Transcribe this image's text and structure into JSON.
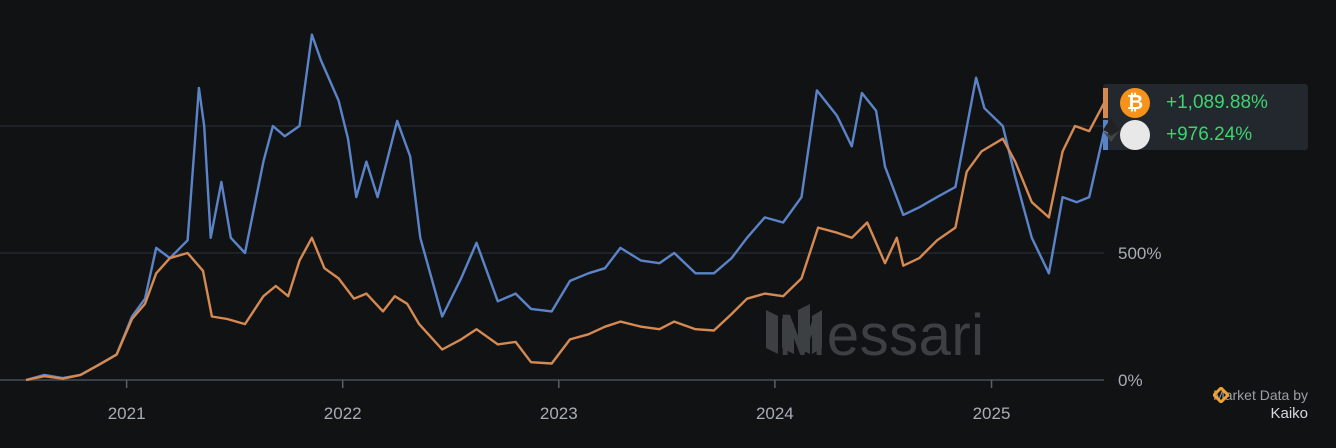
{
  "chart_data": {
    "type": "line",
    "xlabel": "",
    "ylabel": "",
    "x_tick_labels": [
      "2021",
      "2022",
      "2023",
      "2024",
      "2025"
    ],
    "y_tick_labels": [
      "0%",
      "500%"
    ],
    "ylim": [
      0,
      1400
    ],
    "xlim": [
      "2020-07-15",
      "2025-07-10"
    ],
    "grid": "horizontal",
    "series": [
      {
        "name": "",
        "coin": "btc",
        "color": "#d58a52",
        "legend_value": "+1,089.88%",
        "points": [
          [
            "2020-07-15",
            0
          ],
          [
            "2020-08-15",
            15
          ],
          [
            "2020-09-15",
            5
          ],
          [
            "2020-10-15",
            20
          ],
          [
            "2020-11-15",
            60
          ],
          [
            "2020-12-15",
            100
          ],
          [
            "2021-01-10",
            240
          ],
          [
            "2021-02-01",
            300
          ],
          [
            "2021-02-20",
            420
          ],
          [
            "2021-03-15",
            480
          ],
          [
            "2021-04-14",
            500
          ],
          [
            "2021-05-10",
            430
          ],
          [
            "2021-05-25",
            250
          ],
          [
            "2021-06-20",
            240
          ],
          [
            "2021-07-20",
            220
          ],
          [
            "2021-08-20",
            330
          ],
          [
            "2021-09-10",
            370
          ],
          [
            "2021-10-01",
            330
          ],
          [
            "2021-10-20",
            470
          ],
          [
            "2021-11-10",
            560
          ],
          [
            "2021-12-01",
            440
          ],
          [
            "2021-12-25",
            400
          ],
          [
            "2022-01-20",
            320
          ],
          [
            "2022-02-10",
            340
          ],
          [
            "2022-03-10",
            270
          ],
          [
            "2022-03-30",
            330
          ],
          [
            "2022-04-20",
            300
          ],
          [
            "2022-05-10",
            220
          ],
          [
            "2022-06-18",
            120
          ],
          [
            "2022-07-20",
            160
          ],
          [
            "2022-08-15",
            200
          ],
          [
            "2022-09-20",
            140
          ],
          [
            "2022-10-20",
            150
          ],
          [
            "2022-11-15",
            70
          ],
          [
            "2022-12-20",
            65
          ],
          [
            "2023-01-20",
            160
          ],
          [
            "2023-02-20",
            180
          ],
          [
            "2023-03-20",
            210
          ],
          [
            "2023-04-15",
            230
          ],
          [
            "2023-05-20",
            210
          ],
          [
            "2023-06-20",
            200
          ],
          [
            "2023-07-15",
            230
          ],
          [
            "2023-08-20",
            200
          ],
          [
            "2023-09-20",
            195
          ],
          [
            "2023-10-20",
            260
          ],
          [
            "2023-11-15",
            320
          ],
          [
            "2023-12-15",
            340
          ],
          [
            "2024-01-15",
            330
          ],
          [
            "2024-02-15",
            400
          ],
          [
            "2024-03-14",
            600
          ],
          [
            "2024-04-15",
            580
          ],
          [
            "2024-05-10",
            560
          ],
          [
            "2024-06-05",
            620
          ],
          [
            "2024-07-05",
            460
          ],
          [
            "2024-07-25",
            560
          ],
          [
            "2024-08-05",
            450
          ],
          [
            "2024-09-01",
            480
          ],
          [
            "2024-10-01",
            550
          ],
          [
            "2024-11-01",
            600
          ],
          [
            "2024-11-20",
            820
          ],
          [
            "2024-12-15",
            900
          ],
          [
            "2025-01-20",
            950
          ],
          [
            "2025-02-10",
            860
          ],
          [
            "2025-03-10",
            700
          ],
          [
            "2025-04-08",
            640
          ],
          [
            "2025-05-01",
            900
          ],
          [
            "2025-05-22",
            1000
          ],
          [
            "2025-06-15",
            980
          ],
          [
            "2025-07-10",
            1089.88
          ]
        ]
      },
      {
        "name": "",
        "coin": "eth",
        "color": "#5b84c8",
        "legend_value": "+976.24%",
        "points": [
          [
            "2020-07-15",
            0
          ],
          [
            "2020-08-15",
            20
          ],
          [
            "2020-09-15",
            8
          ],
          [
            "2020-10-15",
            20
          ],
          [
            "2020-11-15",
            60
          ],
          [
            "2020-12-15",
            100
          ],
          [
            "2021-01-10",
            250
          ],
          [
            "2021-02-01",
            320
          ],
          [
            "2021-02-20",
            520
          ],
          [
            "2021-03-15",
            480
          ],
          [
            "2021-04-14",
            550
          ],
          [
            "2021-05-03",
            1150
          ],
          [
            "2021-05-12",
            1000
          ],
          [
            "2021-05-23",
            560
          ],
          [
            "2021-06-10",
            780
          ],
          [
            "2021-06-26",
            560
          ],
          [
            "2021-07-20",
            500
          ],
          [
            "2021-08-20",
            860
          ],
          [
            "2021-09-05",
            1000
          ],
          [
            "2021-09-25",
            960
          ],
          [
            "2021-10-20",
            1000
          ],
          [
            "2021-11-10",
            1360
          ],
          [
            "2021-11-25",
            1260
          ],
          [
            "2021-12-25",
            1100
          ],
          [
            "2022-01-10",
            950
          ],
          [
            "2022-01-24",
            720
          ],
          [
            "2022-02-10",
            860
          ],
          [
            "2022-03-01",
            720
          ],
          [
            "2022-04-03",
            1020
          ],
          [
            "2022-04-25",
            880
          ],
          [
            "2022-05-12",
            560
          ],
          [
            "2022-06-18",
            250
          ],
          [
            "2022-07-20",
            400
          ],
          [
            "2022-08-15",
            540
          ],
          [
            "2022-09-20",
            310
          ],
          [
            "2022-10-20",
            340
          ],
          [
            "2022-11-15",
            280
          ],
          [
            "2022-12-20",
            270
          ],
          [
            "2023-01-20",
            390
          ],
          [
            "2023-02-20",
            420
          ],
          [
            "2023-03-20",
            440
          ],
          [
            "2023-04-15",
            520
          ],
          [
            "2023-05-20",
            470
          ],
          [
            "2023-06-20",
            460
          ],
          [
            "2023-07-15",
            500
          ],
          [
            "2023-08-20",
            420
          ],
          [
            "2023-09-20",
            420
          ],
          [
            "2023-10-20",
            480
          ],
          [
            "2023-11-15",
            560
          ],
          [
            "2023-12-15",
            640
          ],
          [
            "2024-01-15",
            620
          ],
          [
            "2024-02-15",
            720
          ],
          [
            "2024-03-12",
            1140
          ],
          [
            "2024-04-15",
            1040
          ],
          [
            "2024-05-10",
            920
          ],
          [
            "2024-05-27",
            1130
          ],
          [
            "2024-06-20",
            1060
          ],
          [
            "2024-07-05",
            840
          ],
          [
            "2024-08-05",
            650
          ],
          [
            "2024-09-01",
            680
          ],
          [
            "2024-10-01",
            720
          ],
          [
            "2024-11-01",
            760
          ],
          [
            "2024-12-06",
            1190
          ],
          [
            "2024-12-20",
            1070
          ],
          [
            "2025-01-20",
            1000
          ],
          [
            "2025-02-10",
            800
          ],
          [
            "2025-03-10",
            560
          ],
          [
            "2025-04-08",
            420
          ],
          [
            "2025-05-01",
            720
          ],
          [
            "2025-05-25",
            700
          ],
          [
            "2025-06-15",
            720
          ],
          [
            "2025-07-10",
            976.24
          ]
        ]
      }
    ]
  },
  "legend": {
    "btc_value": "+1,089.88%",
    "eth_value": "+976.24%",
    "btc_color": "#d58a52",
    "eth_color": "#5b84c8",
    "btc_icon": "bitcoin-icon",
    "eth_icon": "ethereum-icon"
  },
  "watermark": {
    "text": "Messari"
  },
  "credit": {
    "line1": "Market Data by",
    "brand": "Kaiko"
  }
}
